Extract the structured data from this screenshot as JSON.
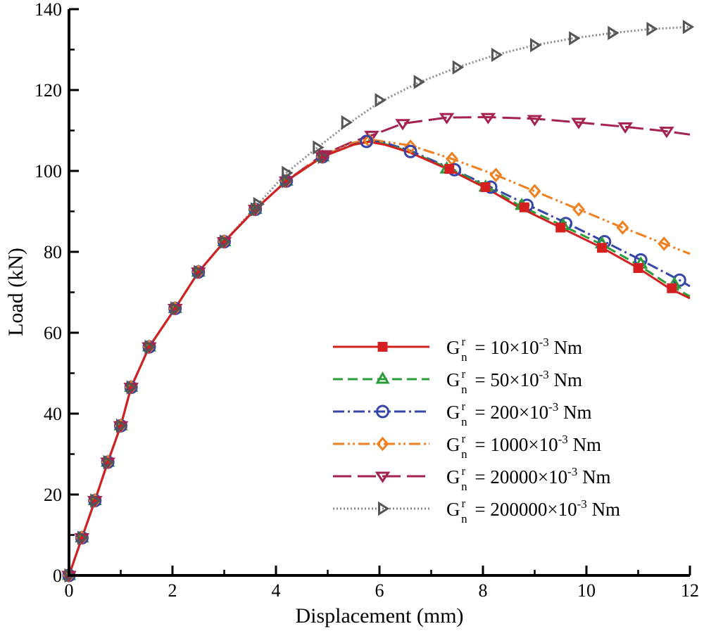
{
  "chart_data": {
    "type": "line",
    "xlabel": "Displacement (mm)",
    "ylabel": "Load (kN)",
    "xlim": [
      0,
      12
    ],
    "ylim": [
      0,
      140
    ],
    "xticks": [
      0,
      2,
      4,
      6,
      8,
      10,
      12
    ],
    "yticks": [
      0,
      20,
      40,
      60,
      80,
      100,
      120,
      140
    ],
    "grid": false,
    "legend_position": "bottom-right",
    "legend_symbol": "G",
    "legend_superscript": "r",
    "legend_subscript": "n",
    "legend_unit_exponent": "-3",
    "series": [
      {
        "name": "10×10-3 Nm",
        "legend_text": "= 10×10",
        "legend_suffix": " Nm",
        "color": "#d42020",
        "dash": "none",
        "marker": "square",
        "marker_fill": true,
        "x": [
          0,
          0.25,
          0.5,
          0.75,
          1.0,
          1.2,
          1.55,
          2.05,
          2.5,
          3.0,
          3.6,
          4.2,
          4.9,
          5.5,
          5.8,
          6.1,
          6.6,
          7.4,
          8.1,
          8.7,
          9.5,
          10.3,
          11.0,
          11.6,
          12.0
        ],
        "y": [
          0,
          9.3,
          18.5,
          28,
          37,
          46.5,
          56.5,
          66,
          75,
          82.5,
          90.5,
          97.5,
          103.5,
          106.5,
          107.2,
          106.5,
          104.5,
          100,
          95.5,
          91,
          86,
          81,
          76,
          71,
          68.5
        ],
        "marker_x": [
          7.35,
          8.05,
          8.8,
          9.5,
          10.3,
          11.0,
          11.65
        ],
        "marker_y": [
          100.5,
          96,
          91,
          86,
          81,
          76,
          71
        ]
      },
      {
        "name": "50×10-3 Nm",
        "legend_text": "= 50×10",
        "legend_suffix": " Nm",
        "color": "#2a9d3a",
        "dash": "14,7",
        "marker": "triangle-up",
        "marker_fill": false,
        "x": [
          0,
          0.25,
          0.5,
          0.75,
          1.0,
          1.2,
          1.55,
          2.05,
          2.5,
          3.0,
          3.6,
          4.2,
          4.9,
          5.5,
          5.8,
          6.1,
          6.6,
          7.4,
          8.1,
          8.7,
          9.5,
          10.3,
          11.0,
          11.6,
          12.0
        ],
        "y": [
          0,
          9.3,
          18.5,
          28,
          37,
          46.5,
          56.5,
          66,
          75,
          82.5,
          90.5,
          97.5,
          103.5,
          106.5,
          107.3,
          106.7,
          104.7,
          100.3,
          96,
          91.5,
          86.7,
          81.8,
          76.8,
          71.8,
          69
        ],
        "marker_x": [
          7.3,
          8.05,
          8.75,
          9.55,
          10.3,
          11.05,
          11.7
        ],
        "marker_y": [
          100.5,
          96,
          91.5,
          86.5,
          82,
          77,
          72
        ]
      },
      {
        "name": "200×10-3 Nm",
        "legend_text": "= 200×10",
        "legend_suffix": " Nm",
        "color": "#3545a8",
        "dash": "16,5,3,5",
        "marker": "circle",
        "marker_fill": false,
        "x": [
          0,
          0.25,
          0.5,
          0.75,
          1.0,
          1.2,
          1.55,
          2.05,
          2.5,
          3.0,
          3.6,
          4.2,
          4.9,
          5.5,
          5.8,
          6.1,
          6.6,
          7.4,
          8.15,
          8.85,
          9.6,
          10.35,
          11.05,
          11.8,
          12.0
        ],
        "y": [
          0,
          9.3,
          18.5,
          28,
          37,
          46.5,
          56.5,
          66,
          75,
          82.5,
          90.5,
          97.5,
          103.5,
          106.6,
          107.4,
          107,
          105,
          100.5,
          96,
          91.7,
          87.2,
          82.5,
          78,
          73,
          71.5
        ],
        "marker_x": [
          5.75,
          6.6,
          7.45,
          8.15,
          8.85,
          9.6,
          10.35,
          11.05,
          11.8
        ],
        "marker_y": [
          107.3,
          104.8,
          100.3,
          96,
          91.5,
          87,
          82.5,
          78,
          73
        ]
      },
      {
        "name": "1000×10-3 Nm",
        "legend_text": "= 1000×10",
        "legend_suffix": " Nm",
        "color": "#f07f20",
        "dash": "16,5,3,4,3,5",
        "marker": "diamond",
        "marker_fill": false,
        "x": [
          0,
          0.25,
          0.5,
          0.75,
          1.0,
          1.2,
          1.55,
          2.05,
          2.5,
          3.0,
          3.6,
          4.2,
          4.9,
          5.5,
          5.8,
          6.6,
          7.4,
          8.25,
          9.0,
          9.85,
          10.7,
          11.5,
          12.0
        ],
        "y": [
          0,
          9.3,
          18.5,
          28,
          37,
          46.5,
          56.5,
          66,
          75,
          82.5,
          90.5,
          97.5,
          103.7,
          107,
          107.8,
          106.3,
          103,
          99,
          95,
          90.5,
          86,
          82,
          79.5
        ],
        "marker_x": [
          5.8,
          6.6,
          7.4,
          8.25,
          9.0,
          9.85,
          10.7,
          11.5
        ],
        "marker_y": [
          107.5,
          106,
          103,
          99,
          95,
          90.5,
          86,
          82
        ]
      },
      {
        "name": "20000×10-3 Nm",
        "legend_text": "= 20000×10",
        "legend_suffix": " Nm",
        "color": "#a5224e",
        "dash": "26,9",
        "marker": "triangle-down",
        "marker_fill": false,
        "x": [
          0,
          0.25,
          0.5,
          0.75,
          1.0,
          1.2,
          1.55,
          2.05,
          2.5,
          3.0,
          3.6,
          4.2,
          4.9,
          5.5,
          5.85,
          6.45,
          7.3,
          8.1,
          9.0,
          9.85,
          10.75,
          11.55,
          12.0
        ],
        "y": [
          0,
          9.3,
          18.5,
          28,
          37,
          46.5,
          56.5,
          66,
          75,
          82.5,
          90.5,
          97.5,
          104,
          107.3,
          108.8,
          111.7,
          113.2,
          113.3,
          112.9,
          112,
          110.9,
          109.8,
          109
        ],
        "marker_x": [
          4.95,
          5.85,
          6.45,
          7.3,
          8.1,
          9.0,
          9.85,
          10.75,
          11.55
        ],
        "marker_y": [
          104,
          108.8,
          111.7,
          113.2,
          113.2,
          112.7,
          112,
          110.9,
          109.8
        ]
      },
      {
        "name": "200000×10-3 Nm",
        "legend_text": "= 200000×10",
        "legend_suffix": " Nm",
        "color": "#8a8a8a",
        "marker_color": "#555555",
        "dash": "2,3",
        "marker": "triangle-right",
        "marker_fill": false,
        "x": [
          0,
          0.25,
          0.5,
          0.75,
          1.0,
          1.2,
          1.55,
          2.05,
          2.5,
          3.0,
          3.6,
          4.2,
          4.8,
          5.35,
          6.0,
          6.75,
          7.5,
          8.25,
          9.0,
          9.75,
          10.5,
          11.25,
          12.0
        ],
        "y": [
          0,
          9.3,
          18.5,
          28,
          37,
          46.5,
          56.5,
          66,
          75,
          82.5,
          91,
          99.5,
          105.8,
          111.2,
          117,
          121.8,
          125.6,
          128.7,
          131.1,
          132.8,
          134.1,
          135.1,
          135.6
        ],
        "marker_x": [
          3.65,
          4.2,
          4.8,
          5.35,
          6.0,
          6.75,
          7.5,
          8.25,
          9.0,
          9.75,
          10.5,
          11.25,
          11.95
        ],
        "marker_y": [
          91.8,
          99.5,
          105.8,
          112,
          117.5,
          122,
          125.6,
          128.7,
          131.1,
          132.8,
          134.1,
          135.1,
          135.6
        ]
      }
    ],
    "shared_markers": {
      "description": "Overlapping markers on the common initial curve",
      "x": [
        0,
        0.25,
        0.5,
        0.75,
        1.0,
        1.2,
        1.55,
        2.05,
        2.5,
        3.0,
        3.6,
        4.2,
        4.9
      ],
      "y": [
        0,
        9.3,
        18.5,
        28,
        37,
        46.5,
        56.5,
        66,
        75,
        82.5,
        90.5,
        97.5,
        103.5
      ]
    }
  }
}
